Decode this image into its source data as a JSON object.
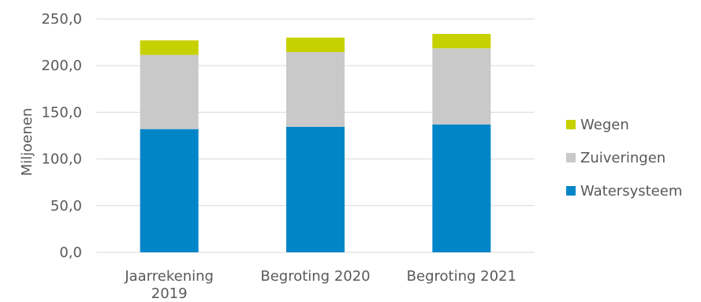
{
  "chart_data": {
    "type": "bar",
    "stacked": true,
    "categories": [
      [
        "Jaarrekening",
        "2019"
      ],
      [
        "Begroting 2020"
      ],
      [
        "Begroting 2021"
      ]
    ],
    "series": [
      {
        "name": "Watersysteem",
        "values": [
          132.0,
          134.5,
          137.0
        ],
        "color": "#0085c8"
      },
      {
        "name": "Zuiveringen",
        "values": [
          79.5,
          80.0,
          81.5
        ],
        "color": "#c9c9c9"
      },
      {
        "name": "Wegen",
        "values": [
          15.5,
          15.5,
          15.5
        ],
        "color": "#c7d100"
      }
    ],
    "ylabel": "Miljoenen",
    "ylim": [
      0,
      250
    ],
    "yticks": [
      "0,0",
      "50,0",
      "100,0",
      "150,0",
      "200,0",
      "250,0"
    ],
    "grid": true,
    "legend_position": "right"
  }
}
